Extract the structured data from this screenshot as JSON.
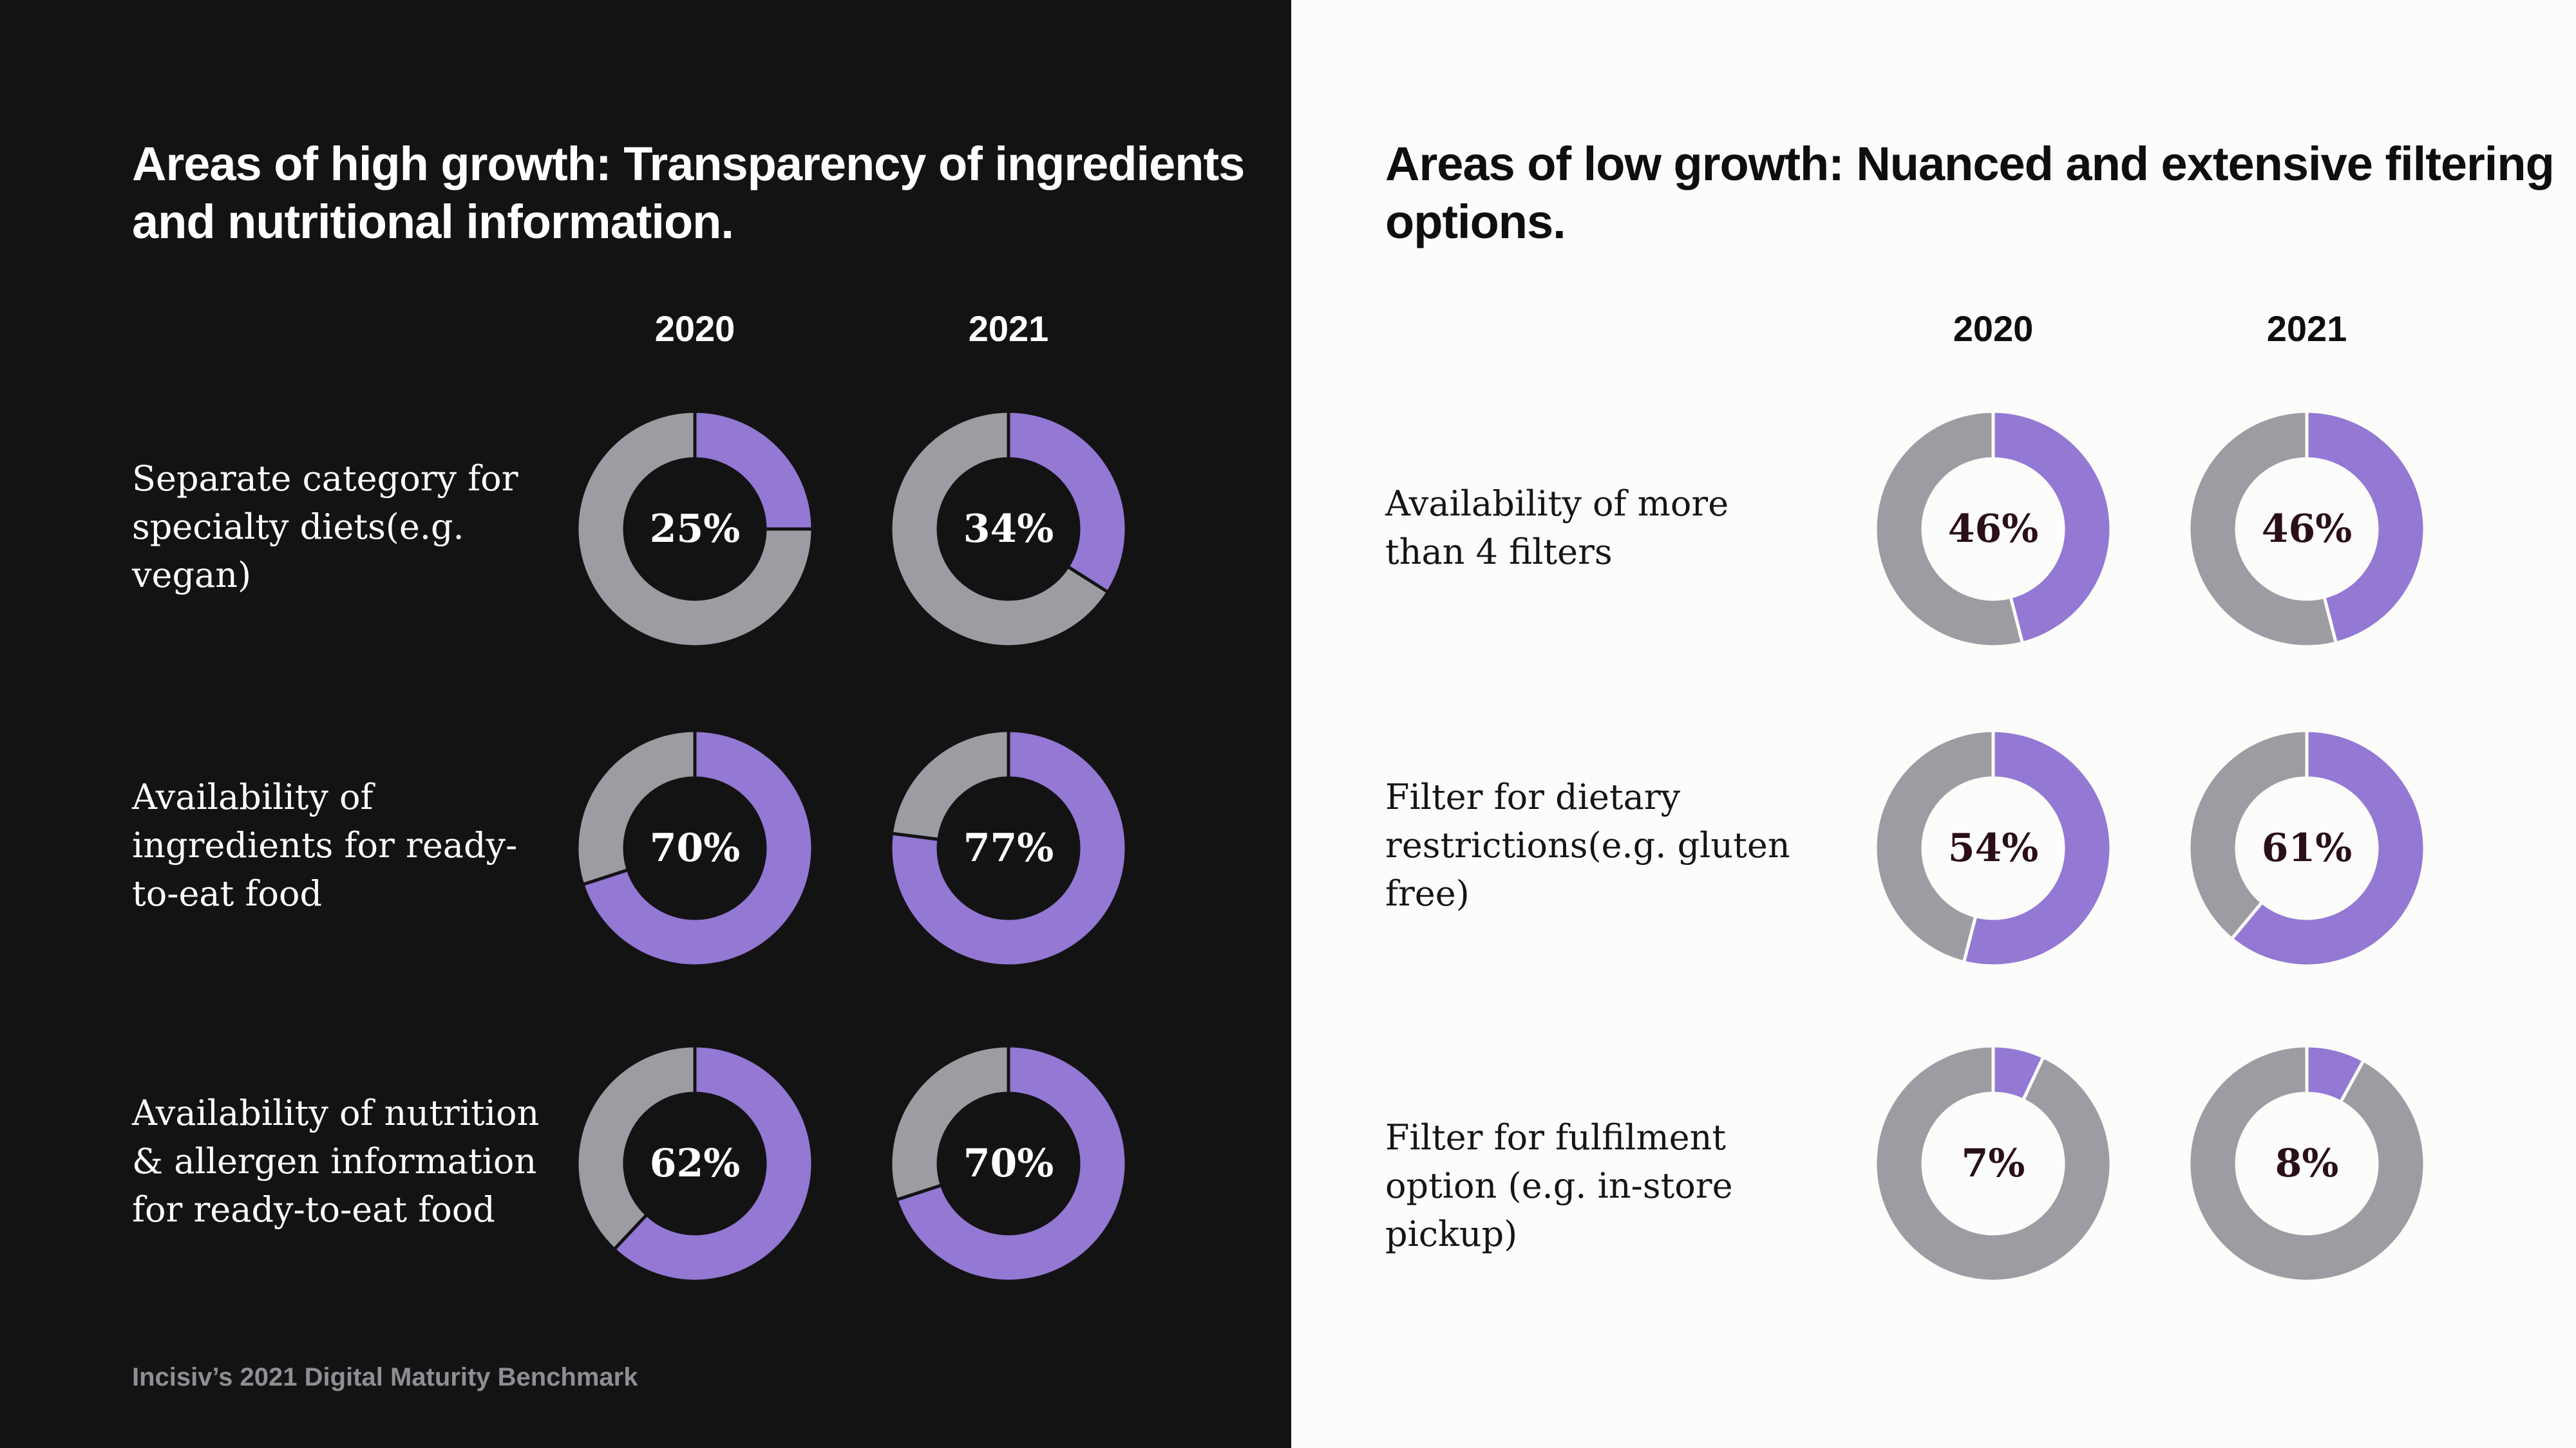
{
  "colors": {
    "accent": "#9378d4",
    "remainder": "#9d9ca2",
    "left_background": "#141314",
    "right_background": "#fcfcfa"
  },
  "chart_data": [
    {
      "type": "pie",
      "variant": "donut-grid",
      "title": "Areas of high growth: Transparency of ingredients and nutritional information.",
      "categories": [
        "2020",
        "2021"
      ],
      "rows": [
        {
          "label": "Separate category for specialty diets(e.g. vegan)",
          "values": [
            25,
            34
          ],
          "value_labels": [
            "25%",
            "34%"
          ]
        },
        {
          "label": "Availability of ingredients for ready-to-eat food",
          "values": [
            70,
            77
          ],
          "value_labels": [
            "70%",
            "77%"
          ]
        },
        {
          "label": "Availability of nutrition & allergen information for ready-to-eat food",
          "values": [
            62,
            70
          ],
          "value_labels": [
            "62%",
            "70%"
          ]
        }
      ],
      "source": "Incisiv’s 2021 Digital Maturity Benchmark"
    },
    {
      "type": "pie",
      "variant": "donut-grid",
      "title": "Areas of low growth: Nuanced and extensive filtering options.",
      "categories": [
        "2020",
        "2021"
      ],
      "rows": [
        {
          "label": "Availability of more than 4 filters",
          "values": [
            46,
            46
          ],
          "value_labels": [
            "46%",
            "46%"
          ]
        },
        {
          "label": "Filter for dietary restrictions(e.g. gluten free)",
          "values": [
            54,
            61
          ],
          "value_labels": [
            "54%",
            "61%"
          ]
        },
        {
          "label": "Filter for fulfilment option (e.g. in-store pickup)",
          "values": [
            7,
            8
          ],
          "value_labels": [
            "7%",
            "8%"
          ]
        }
      ]
    }
  ]
}
